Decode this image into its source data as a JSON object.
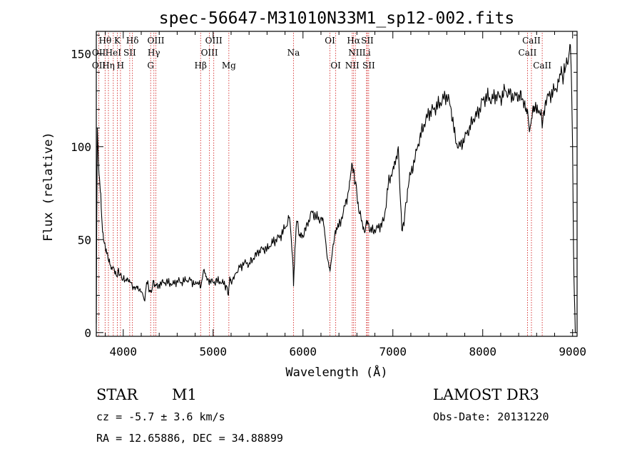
{
  "colors": {
    "axis": "#000000",
    "spectrum": "#000000",
    "line_marker": "#d42a2a",
    "background": "#ffffff"
  },
  "chart_data": {
    "type": "line",
    "title": "spec-56647-M31010N33M1_sp12-002.fits",
    "xlabel": "Wavelength (Å)",
    "ylabel": "Flux (relative)",
    "xlim": [
      3700,
      9050
    ],
    "ylim": [
      -2,
      162
    ],
    "x_ticks": [
      4000,
      5000,
      6000,
      7000,
      8000,
      9000
    ],
    "x_tick_labels": [
      "4000",
      "5000",
      "6000",
      "7000",
      "8000",
      "9000"
    ],
    "y_ticks": [
      0,
      50,
      100,
      150
    ],
    "y_tick_labels": [
      "0",
      "50",
      "100",
      "150"
    ],
    "series": [
      {
        "name": "spectrum",
        "x": [
          3700,
          3705,
          3712,
          3720,
          3730,
          3740,
          3750,
          3760,
          3770,
          3780,
          3790,
          3800,
          3810,
          3820,
          3830,
          3840,
          3850,
          3860,
          3870,
          3880,
          3900,
          3920,
          3940,
          3960,
          3980,
          4000,
          4020,
          4050,
          4080,
          4100,
          4120,
          4150,
          4180,
          4200,
          4220,
          4240,
          4260,
          4280,
          4300,
          4320,
          4340,
          4360,
          4400,
          4450,
          4500,
          4550,
          4600,
          4650,
          4700,
          4750,
          4800,
          4850,
          4861,
          4880,
          4900,
          4920,
          4950,
          5000,
          5050,
          5100,
          5150,
          5170,
          5185,
          5200,
          5220,
          5250,
          5300,
          5350,
          5400,
          5450,
          5500,
          5550,
          5600,
          5650,
          5700,
          5750,
          5800,
          5850,
          5870,
          5890,
          5895,
          5910,
          5930,
          5960,
          6000,
          6050,
          6100,
          6150,
          6180,
          6200,
          6230,
          6250,
          6270,
          6290,
          6300,
          6310,
          6330,
          6360,
          6400,
          6450,
          6500,
          6530,
          6550,
          6563,
          6580,
          6600,
          6620,
          6650,
          6680,
          6700,
          6720,
          6750,
          6800,
          6850,
          6900,
          6950,
          7000,
          7040,
          7060,
          7080,
          7100,
          7130,
          7150,
          7170,
          7200,
          7250,
          7300,
          7350,
          7400,
          7450,
          7500,
          7550,
          7600,
          7650,
          7700,
          7750,
          7800,
          7850,
          7900,
          7950,
          8000,
          8050,
          8100,
          8150,
          8200,
          8250,
          8300,
          8350,
          8400,
          8450,
          8498,
          8520,
          8542,
          8560,
          8600,
          8650,
          8662,
          8700,
          8750,
          8800,
          8850,
          8880,
          8900,
          8920,
          8940,
          8960,
          8970,
          8980,
          8990,
          9000,
          9010,
          9020,
          9030,
          9040
        ],
        "y": [
          5,
          60,
          110,
          98,
          85,
          80,
          75,
          62,
          54,
          50,
          48,
          46,
          45,
          43,
          40,
          38,
          37,
          36,
          35,
          35,
          34,
          31,
          33,
          31,
          30,
          29,
          28,
          29,
          27,
          25,
          24,
          25,
          23,
          22,
          20,
          17,
          27,
          25,
          22,
          23,
          28,
          25,
          26,
          27,
          27,
          26,
          28,
          27,
          28,
          28,
          26,
          28,
          24,
          29,
          34,
          30,
          28,
          27,
          28,
          27,
          25,
          20,
          30,
          27,
          29,
          32,
          35,
          38,
          37,
          40,
          43,
          45,
          45,
          48,
          50,
          52,
          56,
          62,
          50,
          35,
          25,
          45,
          60,
          52,
          52,
          58,
          65,
          62,
          60,
          62,
          58,
          50,
          40,
          35,
          33,
          37,
          45,
          55,
          57,
          65,
          75,
          85,
          90,
          88,
          80,
          75,
          65,
          60,
          55,
          58,
          60,
          55,
          55,
          57,
          60,
          80,
          88,
          95,
          100,
          75,
          55,
          62,
          70,
          78,
          85,
          95,
          105,
          112,
          118,
          120,
          122,
          125,
          128,
          120,
          102,
          100,
          105,
          110,
          115,
          118,
          125,
          127,
          125,
          128,
          126,
          130,
          128,
          127,
          128,
          125,
          120,
          108,
          115,
          122,
          118,
          120,
          110,
          125,
          128,
          130,
          135,
          140,
          138,
          142,
          145,
          150,
          155,
          148,
          130,
          100,
          45,
          20,
          0,
          0
        ]
      }
    ],
    "line_markers": [
      {
        "name": "OII",
        "x": 3728
      },
      {
        "name": "Hθ",
        "x": 3798
      },
      {
        "name": "Hη",
        "x": 3835
      },
      {
        "name": "HeI",
        "x": 3889
      },
      {
        "name": "K",
        "x": 3934
      },
      {
        "name": "H",
        "x": 3969
      },
      {
        "name": "SII",
        "x": 4072
      },
      {
        "name": "Hδ",
        "x": 4102
      },
      {
        "name": "G",
        "x": 4305
      },
      {
        "name": "Hγ",
        "x": 4341
      },
      {
        "name": "OIII",
        "x": 4363
      },
      {
        "name": "Hβ",
        "x": 4861
      },
      {
        "name": "OIII",
        "x": 4959
      },
      {
        "name": "OIII",
        "x": 5007
      },
      {
        "name": "Mg",
        "x": 5175
      },
      {
        "name": "Na",
        "x": 5894
      },
      {
        "name": "OI",
        "x": 6300
      },
      {
        "name": "OI",
        "x": 6364
      },
      {
        "name": "NII",
        "x": 6548
      },
      {
        "name": "Hα",
        "x": 6563
      },
      {
        "name": "NII",
        "x": 6583
      },
      {
        "name": "Li",
        "x": 6707
      },
      {
        "name": "SII",
        "x": 6716
      },
      {
        "name": "SII",
        "x": 6731
      },
      {
        "name": "CaII",
        "x": 8498
      },
      {
        "name": "CaII",
        "x": 8542
      },
      {
        "name": "CaII",
        "x": 8662
      }
    ],
    "line_labels": [
      {
        "text": "Hθ",
        "x": 3798,
        "row": 1
      },
      {
        "text": "K",
        "x": 3934,
        "row": 1
      },
      {
        "text": "Hδ",
        "x": 4102,
        "row": 1
      },
      {
        "text": "OIII",
        "x": 4363,
        "row": 1
      },
      {
        "text": "OIII",
        "x": 5007,
        "row": 1
      },
      {
        "text": "OI",
        "x": 6300,
        "row": 1
      },
      {
        "text": "Hα",
        "x": 6563,
        "row": 1
      },
      {
        "text": "SII",
        "x": 6716,
        "row": 1
      },
      {
        "text": "CaII",
        "x": 8542,
        "row": 1
      },
      {
        "text": "OII",
        "x": 3728,
        "row": 2
      },
      {
        "text": "HeI",
        "x": 3889,
        "row": 2
      },
      {
        "text": "SII",
        "x": 4072,
        "row": 2
      },
      {
        "text": "Hγ",
        "x": 4341,
        "row": 2
      },
      {
        "text": "OIII",
        "x": 4959,
        "row": 2
      },
      {
        "text": "Na",
        "x": 5894,
        "row": 2
      },
      {
        "text": "NII",
        "x": 6583,
        "row": 2
      },
      {
        "text": "Li",
        "x": 6707,
        "row": 2
      },
      {
        "text": "CaII",
        "x": 8498,
        "row": 2
      },
      {
        "text": "OII",
        "x": 3728,
        "row": 3
      },
      {
        "text": "Hη",
        "x": 3835,
        "row": 3
      },
      {
        "text": "H",
        "x": 3969,
        "row": 3
      },
      {
        "text": "G",
        "x": 4305,
        "row": 3
      },
      {
        "text": "Hβ",
        "x": 4861,
        "row": 3
      },
      {
        "text": "Mg",
        "x": 5175,
        "row": 3
      },
      {
        "text": "OI",
        "x": 6364,
        "row": 3
      },
      {
        "text": "NII",
        "x": 6548,
        "row": 3
      },
      {
        "text": "SII",
        "x": 6731,
        "row": 3
      },
      {
        "text": "CaII",
        "x": 8662,
        "row": 3
      }
    ]
  },
  "info": {
    "object_class": "STAR",
    "subclass": "M1",
    "survey": "LAMOST DR3",
    "redshift": "cz = -5.7 ± 3.6 km/s",
    "obs_date": "Obs-Date: 20131220",
    "coords": "RA =  12.65886, DEC =  34.88899"
  }
}
